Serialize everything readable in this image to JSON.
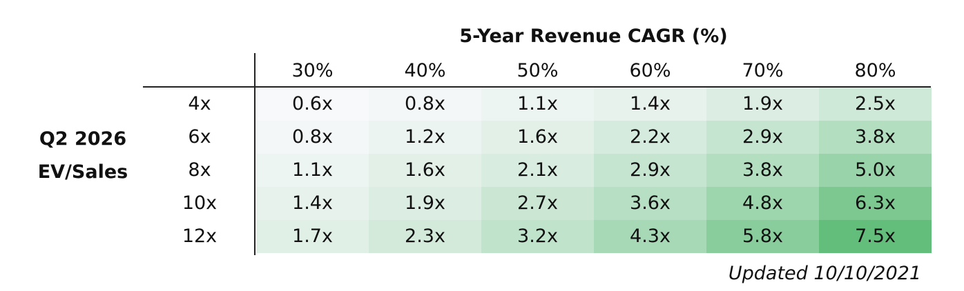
{
  "chart_data": {
    "type": "heatmap",
    "title": "5-Year Revenue CAGR (%)",
    "row_axis_label": [
      "Q2 2026",
      "EV/Sales"
    ],
    "columns": [
      "30%",
      "40%",
      "50%",
      "60%",
      "70%",
      "80%"
    ],
    "rows": [
      "4x",
      "6x",
      "8x",
      "10x",
      "12x"
    ],
    "values": [
      [
        "0.6x",
        "0.8x",
        "1.1x",
        "1.4x",
        "1.9x",
        "2.5x"
      ],
      [
        "0.8x",
        "1.2x",
        "1.6x",
        "2.2x",
        "2.9x",
        "3.8x"
      ],
      [
        "1.1x",
        "1.6x",
        "2.1x",
        "2.9x",
        "3.8x",
        "5.0x"
      ],
      [
        "1.4x",
        "1.9x",
        "2.7x",
        "3.6x",
        "4.8x",
        "6.3x"
      ],
      [
        "1.7x",
        "2.3x",
        "3.2x",
        "4.3x",
        "5.8x",
        "7.5x"
      ]
    ],
    "color_scale": {
      "low": "#f8f9fb",
      "high": "#63be7b"
    }
  },
  "footnote": "Updated 10/10/2021"
}
